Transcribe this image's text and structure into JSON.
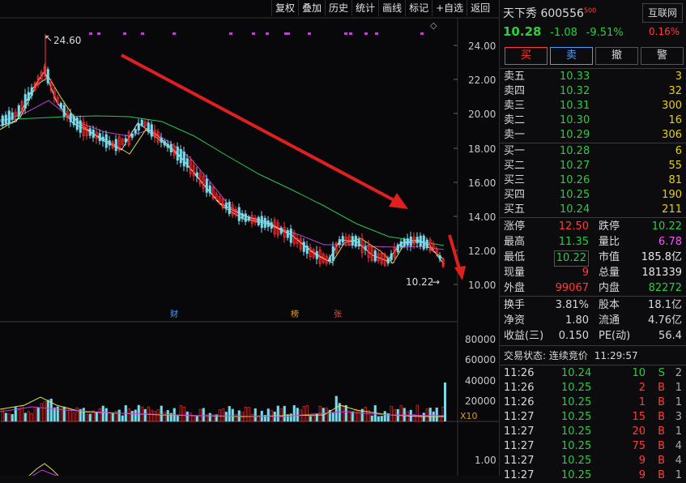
{
  "toolbar": [
    "复权",
    "叠加",
    "历史",
    "统计",
    "画线",
    "标记",
    "+自选",
    "返回"
  ],
  "chart": {
    "price_axis": [
      "24.00",
      "22.00",
      "20.00",
      "18.00",
      "16.00",
      "14.00",
      "12.00",
      "10.00"
    ],
    "high_label": "24.60",
    "low_label": "10.22",
    "markers": {
      "cai": "财",
      "bang": "榜",
      "zhang": "张"
    },
    "vol_axis": [
      "80000",
      "60000",
      "40000",
      "20000"
    ],
    "vol_unit": "X10",
    "sub_axis": "1.00"
  },
  "quote": {
    "name": "天下秀",
    "code": "600556",
    "code_sup": "500",
    "industry": "互联网",
    "price": "10.28",
    "change": "-1.08",
    "pct": "-9.51%",
    "industry_pct": "0.16%",
    "buttons": {
      "buy": "买",
      "sell": "卖",
      "cancel": "撤",
      "alert": "警"
    }
  },
  "asks": [
    {
      "label": "卖五",
      "price": "10.33",
      "vol": "3"
    },
    {
      "label": "卖四",
      "price": "10.32",
      "vol": "32"
    },
    {
      "label": "卖三",
      "price": "10.31",
      "vol": "300"
    },
    {
      "label": "卖二",
      "price": "10.30",
      "vol": "16"
    },
    {
      "label": "卖一",
      "price": "10.29",
      "vol": "306"
    }
  ],
  "bids": [
    {
      "label": "买一",
      "price": "10.28",
      "vol": "6"
    },
    {
      "label": "买二",
      "price": "10.27",
      "vol": "55"
    },
    {
      "label": "买三",
      "price": "10.26",
      "vol": "81"
    },
    {
      "label": "买四",
      "price": "10.25",
      "vol": "190"
    },
    {
      "label": "买五",
      "price": "10.24",
      "vol": "211"
    }
  ],
  "stats": [
    {
      "l1": "涨停",
      "v1": "12.50",
      "c1": "red",
      "l2": "跌停",
      "v2": "10.22",
      "c2": "green"
    },
    {
      "l1": "最高",
      "v1": "11.35",
      "c1": "green",
      "l2": "量比",
      "v2": "6.78",
      "c2": "magenta"
    },
    {
      "l1": "最低",
      "v1": "10.22",
      "c1": "green",
      "l2": "市值",
      "v2": "185.8亿",
      "c2": "white"
    },
    {
      "l1": "现量",
      "v1": "9",
      "c1": "red",
      "l2": "总量",
      "v2": "181339",
      "c2": "white"
    },
    {
      "l1": "外盘",
      "v1": "99067",
      "c1": "red",
      "l2": "内盘",
      "v2": "82272",
      "c2": "green"
    }
  ],
  "stats2": [
    {
      "l1": "换手",
      "v1": "3.81%",
      "l2": "股本",
      "v2": "18.1亿"
    },
    {
      "l1": "净资",
      "v1": "1.80",
      "l2": "流通",
      "v2": "4.76亿"
    },
    {
      "l1": "收益(三)",
      "v1": "0.150",
      "l2": "PE(动)",
      "v2": "56.4"
    }
  ],
  "status": {
    "label": "交易状态:",
    "value": "连续竞价",
    "time": "11:29:57"
  },
  "ticks": [
    {
      "t": "11:26",
      "p": "10.24",
      "v": "10",
      "s": "S",
      "n": "2"
    },
    {
      "t": "11:26",
      "p": "10.25",
      "v": "2",
      "s": "B",
      "n": "1"
    },
    {
      "t": "11:26",
      "p": "10.25",
      "v": "1",
      "s": "B",
      "n": "1"
    },
    {
      "t": "11:27",
      "p": "10.25",
      "v": "15",
      "s": "B",
      "n": "3"
    },
    {
      "t": "11:27",
      "p": "10.25",
      "v": "20",
      "s": "B",
      "n": "1"
    },
    {
      "t": "11:27",
      "p": "10.25",
      "v": "75",
      "s": "B",
      "n": "4"
    },
    {
      "t": "11:27",
      "p": "10.25",
      "v": "9",
      "s": "B",
      "n": "4"
    },
    {
      "t": "11:27",
      "p": "10.25",
      "v": "9",
      "s": "B",
      "n": "1"
    }
  ],
  "colors": {
    "up": "#ff3b3b",
    "down": "#2ecc40",
    "bg": "#08080a",
    "accent": "#e8d000"
  }
}
